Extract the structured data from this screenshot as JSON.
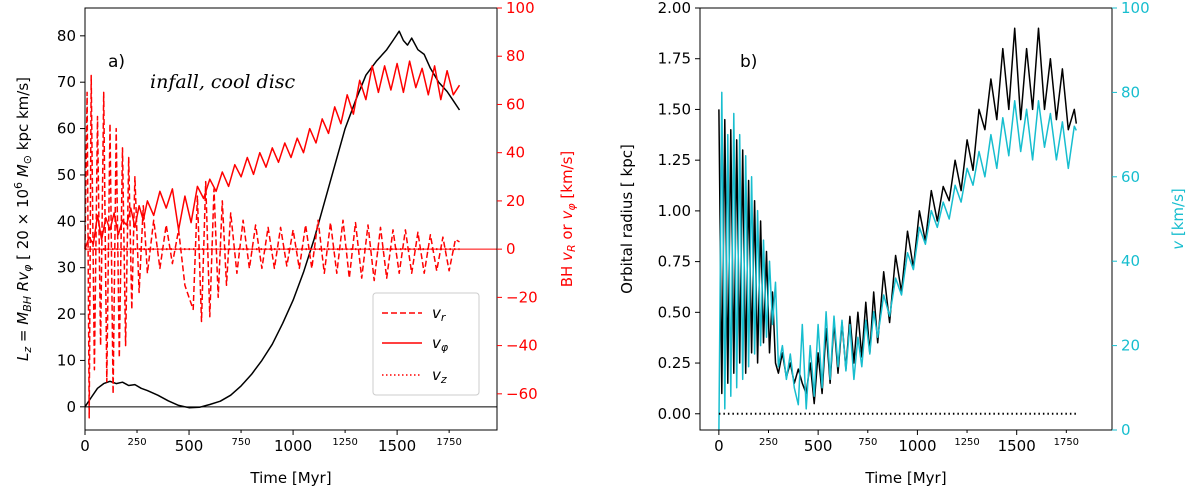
{
  "colors": {
    "black": "#000000",
    "red": "#ff0000",
    "cyan": "#17becf",
    "legend_border": "#cccccc"
  },
  "chart_data": [
    {
      "id": "a",
      "type": "line",
      "panel_label": "a)",
      "annotation": "infall, cool disc",
      "xlabel": "Time [Myr]",
      "ylabel_left": "L_z = M_BH R v_φ [ 20 × 10^6 M_⊙ kpc km/s]",
      "ylabel_right": "BH v_R or v_φ [km/s]",
      "xlim": [
        0,
        1980
      ],
      "ylim_left": [
        -5,
        86
      ],
      "ylim_right": [
        -75,
        100
      ],
      "x_ticks": [
        0,
        500,
        1000,
        1500
      ],
      "x_minor_ticks": [
        250,
        750,
        1250,
        1750
      ],
      "y_ticks_left": [
        0,
        10,
        20,
        30,
        40,
        50,
        60,
        70,
        80
      ],
      "y_ticks_right": [
        -60,
        -40,
        -20,
        0,
        20,
        40,
        60,
        80,
        100
      ],
      "grid": false,
      "legend_position": "lower-right",
      "legend": [
        "v_r",
        "v_φ",
        "v_z"
      ],
      "series": [
        {
          "name": "L_z",
          "axis": "left",
          "x": [
            0,
            30,
            60,
            90,
            120,
            150,
            180,
            210,
            240,
            270,
            300,
            350,
            400,
            450,
            500,
            550,
            600,
            650,
            700,
            750,
            800,
            850,
            900,
            950,
            1000,
            1050,
            1100,
            1150,
            1200,
            1250,
            1300,
            1350,
            1400,
            1450,
            1480,
            1510,
            1530,
            1550,
            1570,
            1600,
            1630,
            1660,
            1700,
            1740,
            1770,
            1800
          ],
          "y": [
            0,
            2,
            4,
            5,
            5.5,
            5,
            5.3,
            4.6,
            4.8,
            4,
            3.5,
            2.5,
            1.3,
            0.3,
            -0.2,
            -0.1,
            0.5,
            1.2,
            2.5,
            4.5,
            7,
            10,
            13.5,
            18,
            23,
            29,
            36,
            44,
            52,
            60,
            66,
            71.5,
            74.5,
            77,
            79,
            81,
            79,
            78,
            79.5,
            77,
            76,
            73,
            70,
            68,
            66,
            64
          ]
        },
        {
          "name": "v_r",
          "axis": "right",
          "style": "dashed",
          "x": [
            0,
            10,
            20,
            30,
            45,
            60,
            75,
            90,
            105,
            120,
            135,
            150,
            165,
            180,
            195,
            210,
            225,
            240,
            260,
            280,
            300,
            330,
            360,
            390,
            420,
            450,
            480,
            500,
            520,
            540,
            560,
            580,
            600,
            620,
            640,
            660,
            680,
            700,
            730,
            760,
            790,
            820,
            850,
            880,
            910,
            940,
            970,
            1000,
            1030,
            1060,
            1090,
            1120,
            1150,
            1180,
            1210,
            1240,
            1270,
            1300,
            1330,
            1360,
            1390,
            1420,
            1450,
            1480,
            1510,
            1540,
            1570,
            1600,
            1630,
            1660,
            1690,
            1720,
            1750,
            1780,
            1800
          ],
          "y": [
            0,
            65,
            -70,
            72,
            -50,
            55,
            -40,
            65,
            -55,
            52,
            -60,
            50,
            -45,
            42,
            -40,
            38,
            -25,
            30,
            -18,
            18,
            -10,
            12,
            -8,
            10,
            -6,
            8,
            -15,
            -20,
            -25,
            22,
            -30,
            28,
            -28,
            25,
            -20,
            20,
            -15,
            15,
            -10,
            12,
            -8,
            10,
            -8,
            9,
            -8,
            9,
            -7,
            8,
            -8,
            10,
            -8,
            12,
            -10,
            11,
            -10,
            12,
            -12,
            11,
            -12,
            10,
            -13,
            9,
            -12,
            8,
            -10,
            8,
            -10,
            7,
            -10,
            6,
            -9,
            5,
            -9,
            4,
            3
          ]
        },
        {
          "name": "v_φ",
          "axis": "right",
          "style": "solid",
          "x": [
            0,
            20,
            40,
            60,
            80,
            100,
            120,
            140,
            160,
            180,
            200,
            220,
            240,
            260,
            280,
            300,
            330,
            360,
            390,
            420,
            450,
            480,
            510,
            540,
            570,
            600,
            630,
            660,
            690,
            720,
            750,
            780,
            810,
            840,
            870,
            900,
            930,
            960,
            990,
            1020,
            1050,
            1080,
            1110,
            1140,
            1170,
            1200,
            1230,
            1260,
            1290,
            1320,
            1350,
            1380,
            1410,
            1440,
            1470,
            1500,
            1530,
            1560,
            1590,
            1620,
            1650,
            1680,
            1710,
            1740,
            1770,
            1800
          ],
          "y": [
            0,
            5,
            2,
            14,
            4,
            13,
            8,
            15,
            6,
            12,
            10,
            17,
            9,
            18,
            12,
            20,
            14,
            24,
            17,
            25,
            8,
            22,
            11,
            26,
            21,
            29,
            24,
            32,
            26,
            35,
            30,
            38,
            31,
            40,
            34,
            42,
            36,
            44,
            38,
            46,
            40,
            50,
            44,
            54,
            48,
            59,
            52,
            64,
            56,
            70,
            62,
            76,
            65,
            76,
            66,
            77,
            65,
            78,
            67,
            75,
            64,
            76,
            62,
            74,
            64,
            68
          ]
        },
        {
          "name": "v_z",
          "axis": "right",
          "style": "dotted",
          "x": [
            0,
            1800
          ],
          "y": [
            0,
            0
          ]
        }
      ]
    },
    {
      "id": "b",
      "type": "line",
      "panel_label": "b)",
      "xlabel": "Time [Myr]",
      "ylabel_left": "Orbital radius [ kpc]",
      "ylabel_right": "v [km/s]",
      "xlim": [
        -95,
        1980
      ],
      "ylim_left": [
        -0.08,
        2.0
      ],
      "ylim_right": [
        0,
        100
      ],
      "x_ticks": [
        0,
        500,
        1000,
        1500
      ],
      "x_minor_ticks": [
        250,
        750,
        1250,
        1750
      ],
      "y_ticks_left": [
        0.0,
        0.25,
        0.5,
        0.75,
        1.0,
        1.25,
        1.5,
        1.75,
        2.0
      ],
      "y_ticks_right": [
        0,
        20,
        40,
        60,
        80,
        100
      ],
      "grid": false,
      "series": [
        {
          "name": "radius",
          "axis": "left",
          "x": [
            0,
            15,
            30,
            45,
            60,
            75,
            90,
            105,
            120,
            135,
            150,
            165,
            180,
            195,
            210,
            225,
            240,
            255,
            270,
            285,
            300,
            320,
            340,
            360,
            380,
            400,
            420,
            440,
            460,
            480,
            500,
            520,
            540,
            560,
            580,
            600,
            620,
            640,
            660,
            680,
            700,
            720,
            740,
            760,
            780,
            800,
            830,
            860,
            890,
            920,
            950,
            980,
            1010,
            1040,
            1070,
            1100,
            1130,
            1160,
            1190,
            1220,
            1250,
            1280,
            1310,
            1340,
            1370,
            1400,
            1430,
            1460,
            1490,
            1520,
            1550,
            1580,
            1610,
            1640,
            1670,
            1700,
            1730,
            1760,
            1790,
            1800
          ],
          "y": [
            1.5,
            0.1,
            1.45,
            0.15,
            1.4,
            0.2,
            1.35,
            0.25,
            1.3,
            0.2,
            1.15,
            0.3,
            1.05,
            0.25,
            0.95,
            0.35,
            0.8,
            0.3,
            0.6,
            0.25,
            0.2,
            0.3,
            0.18,
            0.25,
            0.15,
            0.22,
            0.15,
            0.1,
            0.25,
            0.05,
            0.3,
            0.1,
            0.42,
            0.15,
            0.45,
            0.2,
            0.45,
            0.22,
            0.48,
            0.25,
            0.5,
            0.28,
            0.55,
            0.3,
            0.6,
            0.35,
            0.7,
            0.45,
            0.78,
            0.6,
            0.9,
            0.72,
            1.0,
            0.85,
            1.1,
            0.95,
            1.12,
            1.05,
            1.25,
            1.1,
            1.35,
            1.2,
            1.5,
            1.4,
            1.65,
            1.45,
            1.8,
            1.5,
            1.9,
            1.45,
            1.8,
            1.5,
            1.9,
            1.5,
            1.75,
            1.45,
            1.7,
            1.4,
            1.5,
            1.43
          ]
        },
        {
          "name": "v",
          "axis": "right",
          "x": [
            0,
            15,
            30,
            45,
            60,
            75,
            90,
            105,
            120,
            135,
            150,
            165,
            180,
            195,
            210,
            225,
            240,
            255,
            270,
            285,
            300,
            320,
            340,
            360,
            380,
            400,
            420,
            440,
            460,
            480,
            500,
            520,
            540,
            560,
            580,
            600,
            620,
            640,
            660,
            680,
            700,
            720,
            740,
            760,
            780,
            800,
            830,
            860,
            890,
            920,
            950,
            980,
            1010,
            1040,
            1070,
            1100,
            1130,
            1160,
            1190,
            1220,
            1250,
            1280,
            1310,
            1340,
            1370,
            1400,
            1430,
            1460,
            1490,
            1520,
            1550,
            1580,
            1610,
            1640,
            1670,
            1700,
            1730,
            1760,
            1790,
            1800
          ],
          "y": [
            0,
            80,
            5,
            70,
            8,
            75,
            10,
            70,
            12,
            65,
            15,
            60,
            18,
            52,
            20,
            45,
            22,
            40,
            25,
            35,
            15,
            20,
            12,
            18,
            10,
            6,
            25,
            5,
            20,
            8,
            25,
            10,
            28,
            12,
            27,
            15,
            26,
            14,
            25,
            12,
            22,
            15,
            26,
            18,
            28,
            22,
            32,
            27,
            36,
            32,
            42,
            38,
            48,
            44,
            52,
            48,
            54,
            50,
            58,
            54,
            62,
            58,
            66,
            60,
            70,
            62,
            74,
            65,
            78,
            66,
            76,
            64,
            78,
            67,
            75,
            64,
            73,
            62,
            72,
            71
          ]
        },
        {
          "name": "z",
          "axis": "left",
          "style": "dotted",
          "x": [
            0,
            1800
          ],
          "y": [
            0,
            0
          ]
        }
      ]
    }
  ]
}
